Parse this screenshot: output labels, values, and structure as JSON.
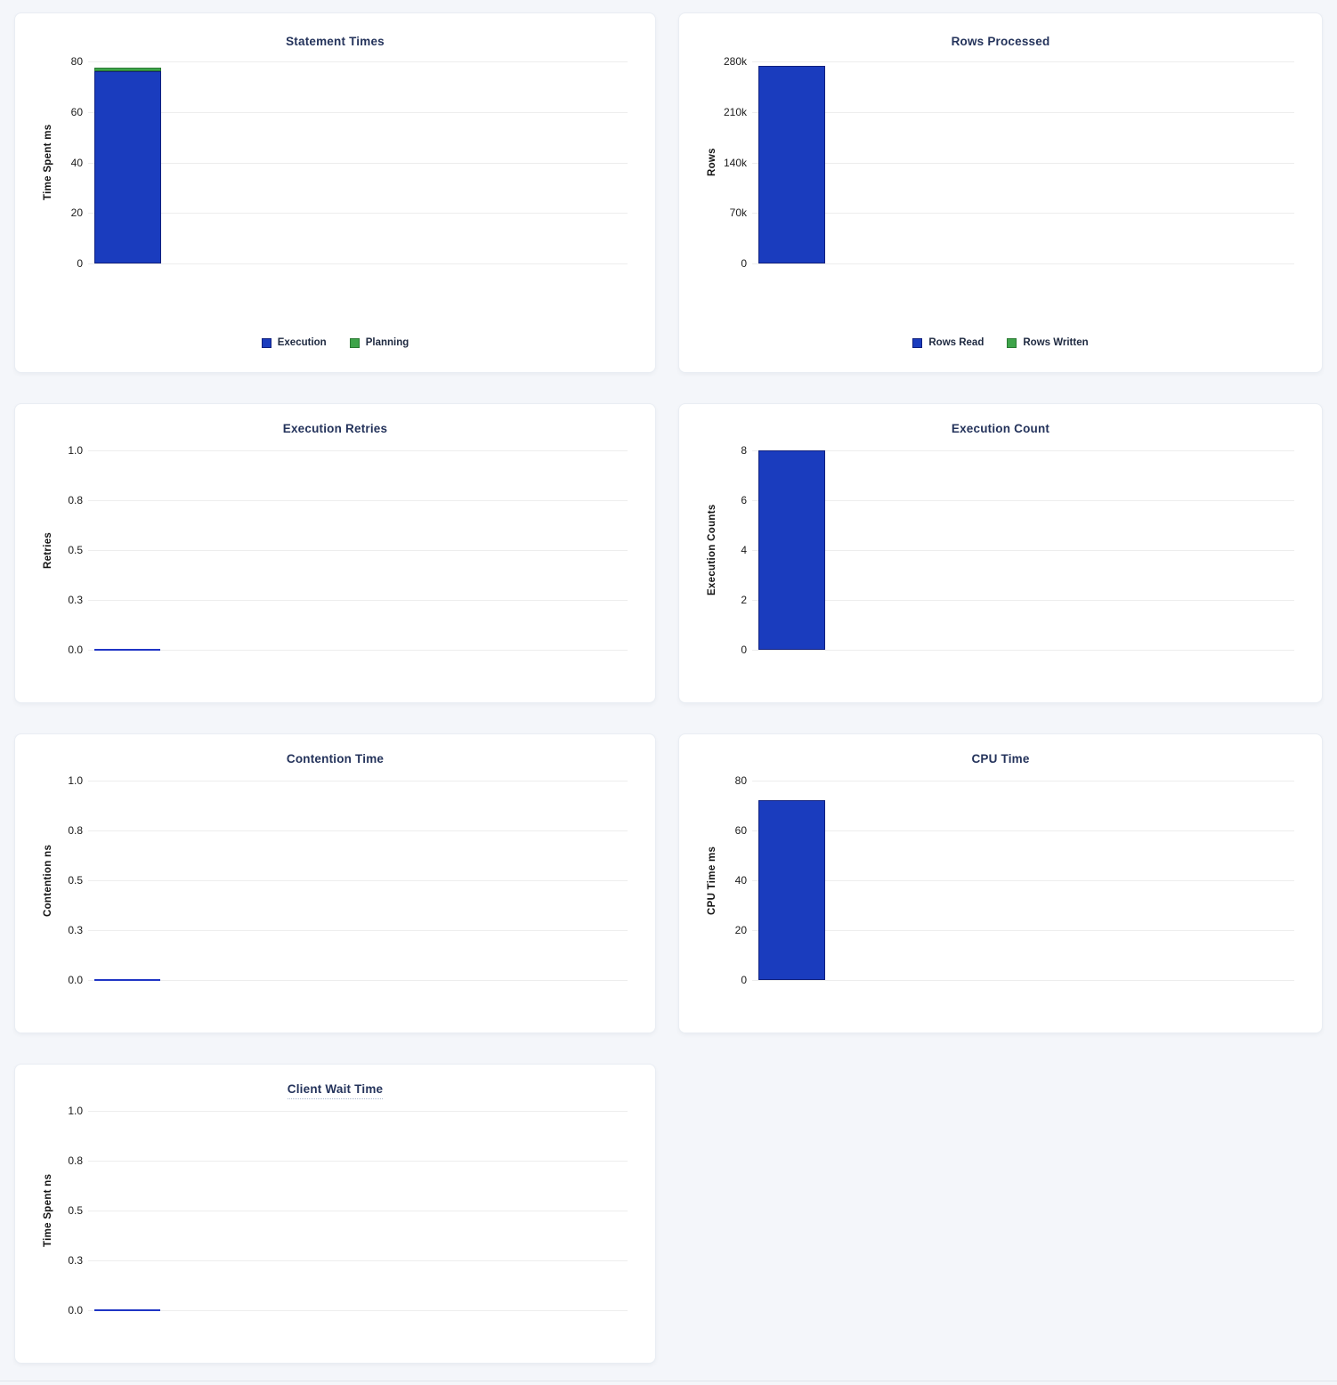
{
  "page": {
    "background": "#f4f6fa"
  },
  "colors": {
    "card_background": "#ffffff",
    "card_border": "#e9edf3",
    "title_text": "#24335b",
    "tick_text": "#1a1a1a",
    "gridline": "#ededed",
    "series_blue": "#1a3cbe",
    "series_blue_stroke": "#10207e",
    "series_green": "#3ea44a",
    "series_green_stroke": "#2a7a33",
    "zero_line": "#1f35c5"
  },
  "chart_data": [
    {
      "type": "bar",
      "title": "Statement Times",
      "title_underlined": false,
      "ylabel": "Time Spent ms",
      "ylim": [
        0,
        80
      ],
      "yticks": [
        "80",
        "60",
        "40",
        "20",
        "0"
      ],
      "grid": true,
      "stacked": true,
      "categories": [
        ""
      ],
      "series": [
        {
          "name": "Execution",
          "color": "blue",
          "values": [
            76
          ]
        },
        {
          "name": "Planning",
          "color": "green",
          "values": [
            1.5
          ]
        }
      ],
      "legend": [
        {
          "label": "Execution",
          "color": "blue"
        },
        {
          "label": "Planning",
          "color": "green"
        }
      ],
      "legend_position": "bottom"
    },
    {
      "type": "bar",
      "title": "Rows Processed",
      "title_underlined": false,
      "ylabel": "Rows",
      "ylim": [
        0,
        280000
      ],
      "yticks": [
        "280k",
        "210k",
        "140k",
        "70k",
        "0"
      ],
      "grid": true,
      "stacked": true,
      "categories": [
        ""
      ],
      "series": [
        {
          "name": "Rows Read",
          "color": "blue",
          "values": [
            274000
          ]
        },
        {
          "name": "Rows Written",
          "color": "green",
          "values": [
            0
          ]
        }
      ],
      "legend": [
        {
          "label": "Rows Read",
          "color": "blue"
        },
        {
          "label": "Rows Written",
          "color": "green"
        }
      ],
      "legend_position": "bottom"
    },
    {
      "type": "bar",
      "title": "Execution Retries",
      "title_underlined": false,
      "ylabel": "Retries",
      "ylim": [
        0,
        1
      ],
      "yticks": [
        "1.0",
        "0.8",
        "0.5",
        "0.3",
        "0.0"
      ],
      "grid": true,
      "stacked": false,
      "categories": [
        ""
      ],
      "series": [
        {
          "name": "Retries",
          "color": "blue",
          "values": [
            0
          ]
        }
      ],
      "legend": null,
      "legend_position": null
    },
    {
      "type": "bar",
      "title": "Execution Count",
      "title_underlined": false,
      "ylabel": "Execution Counts",
      "ylim": [
        0,
        8
      ],
      "yticks": [
        "8",
        "6",
        "4",
        "2",
        "0"
      ],
      "grid": true,
      "stacked": false,
      "categories": [
        ""
      ],
      "series": [
        {
          "name": "Execution Count",
          "color": "blue",
          "values": [
            8
          ]
        }
      ],
      "legend": null,
      "legend_position": null
    },
    {
      "type": "bar",
      "title": "Contention Time",
      "title_underlined": false,
      "ylabel": "Contention ns",
      "ylim": [
        0,
        1
      ],
      "yticks": [
        "1.0",
        "0.8",
        "0.5",
        "0.3",
        "0.0"
      ],
      "grid": true,
      "stacked": false,
      "categories": [
        ""
      ],
      "series": [
        {
          "name": "Contention",
          "color": "blue",
          "values": [
            0
          ]
        }
      ],
      "legend": null,
      "legend_position": null
    },
    {
      "type": "bar",
      "title": "CPU Time",
      "title_underlined": false,
      "ylabel": "CPU Time ms",
      "ylim": [
        0,
        80
      ],
      "yticks": [
        "80",
        "60",
        "40",
        "20",
        "0"
      ],
      "grid": true,
      "stacked": false,
      "categories": [
        ""
      ],
      "series": [
        {
          "name": "CPU Time",
          "color": "blue",
          "values": [
            72
          ]
        }
      ],
      "legend": null,
      "legend_position": null
    },
    {
      "type": "bar",
      "title": "Client Wait Time",
      "title_underlined": true,
      "ylabel": "Time Spent ns",
      "ylim": [
        0,
        1
      ],
      "yticks": [
        "1.0",
        "0.8",
        "0.5",
        "0.3",
        "0.0"
      ],
      "grid": true,
      "stacked": false,
      "categories": [
        ""
      ],
      "series": [
        {
          "name": "Client Wait",
          "color": "blue",
          "values": [
            0
          ]
        }
      ],
      "legend": null,
      "legend_position": null
    }
  ]
}
